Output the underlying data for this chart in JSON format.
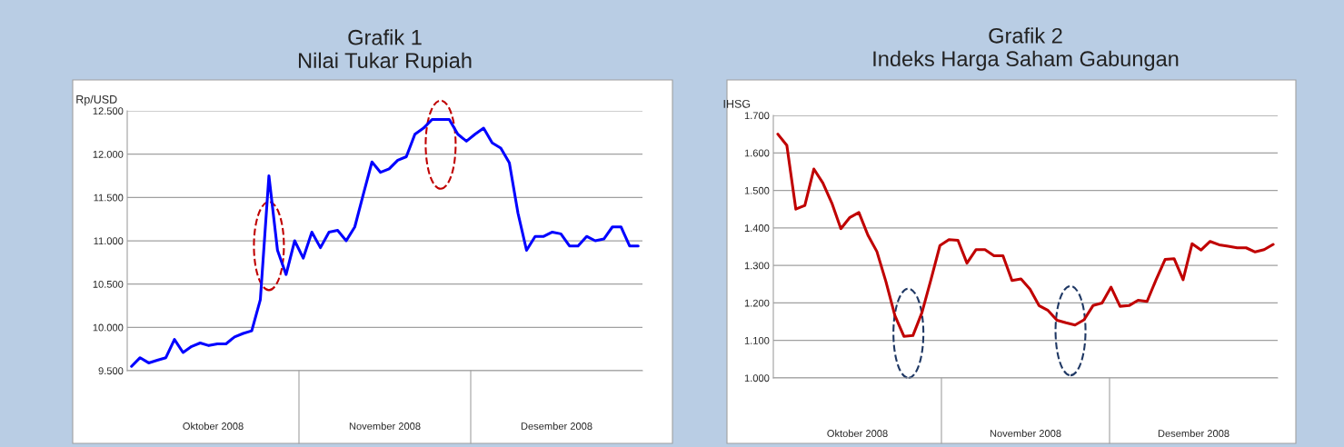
{
  "chart_data": [
    {
      "type": "line",
      "title": "Grafik 1\nNilai Tukar Rupiah",
      "ylabel": "Rp/USD",
      "categories": [
        null,
        null,
        null,
        null,
        null,
        null,
        null,
        null,
        null,
        null,
        null,
        null,
        null,
        null,
        null,
        null,
        null,
        null,
        null,
        null,
        null,
        null,
        null,
        null,
        null,
        null,
        null,
        null,
        null,
        null,
        null,
        null,
        null,
        null,
        null,
        null,
        null,
        null,
        null,
        null,
        null,
        null,
        null,
        null,
        null,
        null,
        null,
        null,
        null,
        null,
        null,
        null,
        null,
        null,
        null,
        null,
        null,
        null,
        null,
        null
      ],
      "series": [
        {
          "color": "#0000ff",
          "values": [
            9550,
            9650,
            9590,
            9620,
            9650,
            9860,
            9710,
            9780,
            9820,
            9790,
            9810,
            9810,
            9890,
            9930,
            9960,
            10320,
            11750,
            10890,
            10610,
            11000,
            10800,
            11100,
            10920,
            11100,
            11120,
            11000,
            11160,
            11540,
            11910,
            11790,
            11830,
            11930,
            11970,
            12230,
            12300,
            12400,
            12400,
            12400,
            12230,
            12150,
            12230,
            12300,
            12130,
            12070,
            11900,
            11320,
            10890,
            11050,
            11050,
            11100,
            11080,
            10940,
            10940,
            11050,
            11000,
            11020,
            11160,
            11160,
            10940,
            10940
          ]
        }
      ],
      "ylim": [
        9500,
        12500
      ],
      "yticks": [
        {
          "value": 9500,
          "label": "9.500"
        },
        {
          "value": 10000,
          "label": "10.000"
        },
        {
          "value": 10500,
          "label": "10.500"
        },
        {
          "value": 11000,
          "label": "11.000"
        },
        {
          "value": 11500,
          "label": "11.500"
        },
        {
          "value": 12000,
          "label": "12.000"
        },
        {
          "value": 12500,
          "label": "12.500"
        }
      ],
      "grid": "y",
      "legend": false,
      "marker": "none",
      "line_style": "solid",
      "annotations": [
        "Oktober 2008",
        "November 2008",
        "Desember 2008"
      ]
    },
    {
      "type": "line",
      "title": "Grafik 2\nIndeks Harga Saham Gabungan",
      "ylabel": "IHSG",
      "categories": [
        null,
        null,
        null,
        null,
        null,
        null,
        null,
        null,
        null,
        null,
        null,
        null,
        null,
        null,
        null,
        null,
        null,
        null,
        null,
        null,
        null,
        null,
        null,
        null,
        null,
        null,
        null,
        null,
        null,
        null,
        null,
        null,
        null,
        null,
        null,
        null,
        null,
        null,
        null,
        null,
        null,
        null,
        null,
        null,
        null,
        null,
        null,
        null,
        null,
        null,
        null,
        null,
        null,
        null,
        null,
        null
      ],
      "series": [
        {
          "color": "#c00000",
          "values": [
            1650,
            1620,
            1450,
            1460,
            1557,
            1520,
            1466,
            1398,
            1428,
            1441,
            1381,
            1337,
            1257,
            1166,
            1111,
            1113,
            1174,
            1262,
            1353,
            1369,
            1367,
            1306,
            1342,
            1342,
            1326,
            1326,
            1260,
            1264,
            1237,
            1193,
            1180,
            1154,
            1147,
            1141,
            1155,
            1193,
            1200,
            1242,
            1191,
            1193,
            1207,
            1204,
            1262,
            1316,
            1318,
            1262,
            1358,
            1341,
            1364,
            1355,
            1351,
            1347,
            1347,
            1336,
            1342,
            1356
          ]
        }
      ],
      "ylim": [
        1000,
        1700
      ],
      "yticks": [
        {
          "value": 1000,
          "label": "1.000"
        },
        {
          "value": 1100,
          "label": "1.100"
        },
        {
          "value": 1200,
          "label": "1.200"
        },
        {
          "value": 1300,
          "label": "1.300"
        },
        {
          "value": 1400,
          "label": "1.400"
        },
        {
          "value": 1500,
          "label": "1.500"
        },
        {
          "value": 1600,
          "label": "1.600"
        },
        {
          "value": 1700,
          "label": "1.700"
        }
      ],
      "grid": "y",
      "legend": false,
      "marker": "none",
      "line_style": "solid",
      "annotations": [
        "Oktober 2008",
        "November 2008",
        "Desember 2008"
      ]
    }
  ]
}
